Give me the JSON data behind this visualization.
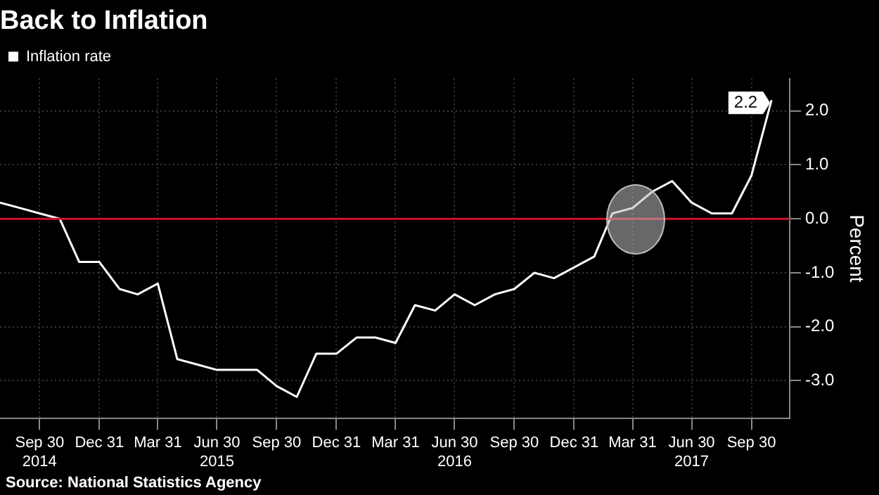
{
  "chart_data": {
    "type": "line",
    "title": "Back to Inflation",
    "x": [
      "2014-07-31",
      "2014-08-31",
      "2014-09-30",
      "2014-10-31",
      "2014-11-30",
      "2014-12-31",
      "2015-01-31",
      "2015-02-28",
      "2015-03-31",
      "2015-04-30",
      "2015-05-31",
      "2015-06-30",
      "2015-07-31",
      "2015-08-31",
      "2015-09-30",
      "2015-10-31",
      "2015-11-30",
      "2015-12-31",
      "2016-01-31",
      "2016-02-29",
      "2016-03-31",
      "2016-04-30",
      "2016-05-31",
      "2016-06-30",
      "2016-07-31",
      "2016-08-31",
      "2016-09-30",
      "2016-10-31",
      "2016-11-30",
      "2016-12-31",
      "2017-01-31",
      "2017-02-28",
      "2017-03-31",
      "2017-04-30",
      "2017-05-31",
      "2017-06-30",
      "2017-07-31",
      "2017-08-31",
      "2017-09-30",
      "2017-10-31"
    ],
    "series": [
      {
        "name": "Inflation rate",
        "color": "#ffffff",
        "values": [
          0.3,
          0.2,
          0.1,
          0.0,
          -0.8,
          -0.8,
          -1.3,
          -1.4,
          -1.2,
          -2.6,
          -2.7,
          -2.8,
          -2.8,
          -2.8,
          -3.1,
          -3.3,
          -2.5,
          -2.5,
          -2.2,
          -2.2,
          -2.3,
          -1.6,
          -1.7,
          -1.4,
          -1.6,
          -1.4,
          -1.3,
          -1.0,
          -1.1,
          -0.9,
          -0.7,
          0.1,
          0.2,
          0.5,
          0.7,
          0.3,
          0.1,
          0.1,
          0.8,
          2.2
        ],
        "value_labels": [
          null,
          null,
          null,
          null,
          null,
          null,
          null,
          null,
          null,
          null,
          null,
          null,
          null,
          null,
          null,
          null,
          null,
          null,
          null,
          null,
          null,
          null,
          null,
          null,
          null,
          null,
          null,
          null,
          null,
          null,
          null,
          null,
          null,
          null,
          null,
          null,
          null,
          null,
          null,
          "2.2"
        ]
      }
    ],
    "xlim": [
      "2014-07-31",
      "2017-11-28"
    ],
    "xticks": [
      {
        "value": "2014-09-30",
        "label": "Sep 30\n2014"
      },
      {
        "value": "2014-12-31",
        "label": "Dec 31"
      },
      {
        "value": "2015-03-31",
        "label": "Mar 31"
      },
      {
        "value": "2015-06-30",
        "label": "Jun 30\n2015"
      },
      {
        "value": "2015-09-30",
        "label": "Sep 30"
      },
      {
        "value": "2015-12-31",
        "label": "Dec 31"
      },
      {
        "value": "2016-03-31",
        "label": "Mar 31"
      },
      {
        "value": "2016-06-30",
        "label": "Jun 30\n2016"
      },
      {
        "value": "2016-09-30",
        "label": "Sep 30"
      },
      {
        "value": "2016-12-31",
        "label": "Dec 31"
      },
      {
        "value": "2017-03-31",
        "label": "Mar 31"
      },
      {
        "value": "2017-06-30",
        "label": "Jun 30\n2017"
      },
      {
        "value": "2017-09-30",
        "label": "Sep 30"
      }
    ],
    "ylim": [
      -3.7,
      2.6
    ],
    "yticks": [
      {
        "value": -3,
        "label": "-3.0"
      },
      {
        "value": -2,
        "label": "-2.0"
      },
      {
        "value": -1,
        "label": "-1.0"
      },
      {
        "value": 0,
        "label": "0.0"
      },
      {
        "value": 1,
        "label": "1.0"
      },
      {
        "value": 2,
        "label": "2.0"
      }
    ],
    "ylabel": "Percent",
    "ref_lines": [
      {
        "axis": "y",
        "value": 0,
        "color": "#d0102a"
      }
    ],
    "grid": true,
    "legend": "top left",
    "marker": "none",
    "line_style": "solid",
    "annotations": [
      "Source: National Statistics Agency"
    ]
  }
}
